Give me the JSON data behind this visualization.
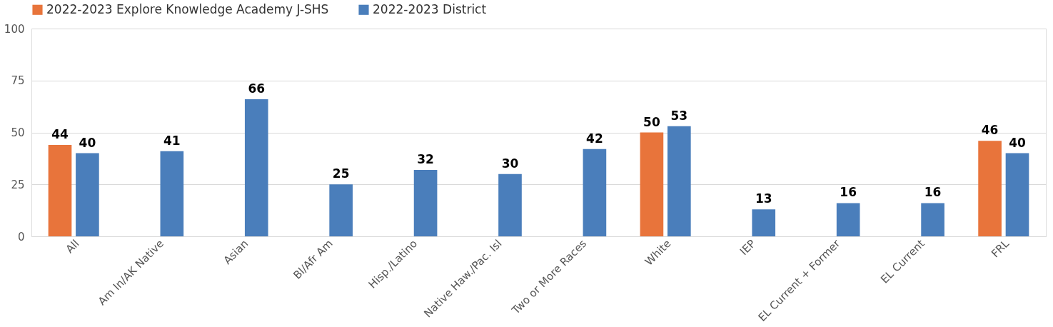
{
  "chart_data": {
    "type": "bar",
    "categories": [
      "All",
      "Am In/AK Native",
      "Asian",
      "Bl/Afr Am",
      "Hisp./Latino",
      "Native Haw./Pac. Isl",
      "Two or More Races",
      "White",
      "IEP",
      "EL Current + Former",
      "EL Current",
      "FRL"
    ],
    "series": [
      {
        "name": "2022-2023 Explore Knowledge Academy J-SHS",
        "color": "#e8743b",
        "values": [
          44,
          null,
          null,
          null,
          null,
          null,
          null,
          50,
          null,
          null,
          null,
          46
        ]
      },
      {
        "name": "2022-2023 District",
        "color": "#4a7ebb",
        "values": [
          40,
          41,
          66,
          25,
          32,
          30,
          42,
          53,
          13,
          16,
          16,
          40
        ]
      }
    ],
    "ylim": [
      0,
      100
    ],
    "yticks": [
      0,
      25,
      50,
      75,
      100
    ],
    "grid": "y",
    "legend": "top",
    "data_labels": true
  }
}
